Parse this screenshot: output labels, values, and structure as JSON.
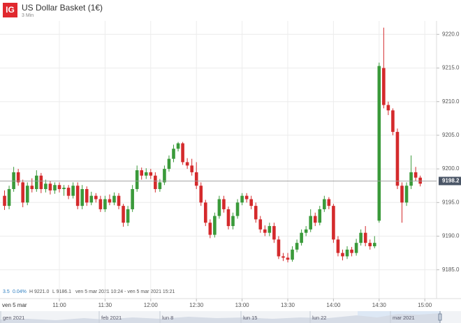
{
  "chart_data": {
    "type": "candlestick",
    "title": "US Dollar Basket (1€)",
    "subtitle": "3 Min",
    "logo": "IG",
    "date_label": "ven 5 mar",
    "x": [
      "10:24",
      "10:27",
      "10:30",
      "10:33",
      "10:36",
      "10:39",
      "10:42",
      "10:45",
      "10:48",
      "10:51",
      "10:54",
      "10:57",
      "11:00",
      "11:03",
      "11:06",
      "11:09",
      "11:12",
      "11:15",
      "11:18",
      "11:21",
      "11:24",
      "11:27",
      "11:30",
      "11:33",
      "11:36",
      "11:39",
      "11:42",
      "11:45",
      "11:48",
      "11:51",
      "11:54",
      "11:57",
      "12:00",
      "12:03",
      "12:06",
      "12:09",
      "12:12",
      "12:15",
      "12:18",
      "12:21",
      "12:24",
      "12:27",
      "12:30",
      "12:33",
      "12:36",
      "12:39",
      "12:42",
      "12:45",
      "12:48",
      "12:51",
      "12:54",
      "12:57",
      "13:00",
      "13:03",
      "13:06",
      "13:09",
      "13:12",
      "13:15",
      "13:18",
      "13:21",
      "13:24",
      "13:27",
      "13:30",
      "13:33",
      "13:36",
      "13:39",
      "13:42",
      "13:45",
      "13:48",
      "13:51",
      "13:54",
      "13:57",
      "14:00",
      "14:03",
      "14:06",
      "14:09",
      "14:12",
      "14:15",
      "14:18",
      "14:21",
      "14:24",
      "14:27",
      "14:30",
      "14:33",
      "14:36",
      "14:39",
      "14:42",
      "14:45",
      "14:48",
      "14:51",
      "14:54",
      "14:57"
    ],
    "open": [
      9196.0,
      9194.5,
      9197.0,
      9199.5,
      9198.0,
      9195.0,
      9197.5,
      9197.0,
      9199.0,
      9197.0,
      9197.8,
      9196.8,
      9197.6,
      9197.0,
      9197.2,
      9196.0,
      9197.5,
      9194.5,
      9197.0,
      9195.0,
      9196.0,
      9195.5,
      9194.0,
      9195.5,
      9195.0,
      9196.0,
      9194.5,
      9192.0,
      9194.0,
      9197.0,
      9199.8,
      9199.0,
      9199.5,
      9199.0,
      9197.0,
      9198.0,
      9200.0,
      9201.5,
      9203.0,
      9203.8,
      9201.0,
      9200.5,
      9199.5,
      9197.5,
      9195.0,
      9192.0,
      9190.2,
      9193.0,
      9195.5,
      9194.0,
      9191.5,
      9193.0,
      9195.0,
      9196.0,
      9195.5,
      9194.5,
      9192.5,
      9191.0,
      9190.5,
      9191.5,
      9189.5,
      9187.0,
      9186.8,
      9186.5,
      9188.0,
      9189.0,
      9190.5,
      9191.0,
      9193.0,
      9192.0,
      9194.0,
      9195.5,
      9194.5,
      9189.5,
      9187.5,
      9187.0,
      9188.0,
      9187.5,
      9189.0,
      9190.5,
      9189.0,
      9188.5,
      9192.3,
      9215.0,
      9209.5,
      9208.7,
      9205.5,
      9197.5,
      9195.0,
      9197.5,
      9199.5,
      9198.7
    ],
    "high": [
      9196.8,
      9197.5,
      9200.3,
      9200.0,
      9198.4,
      9198.0,
      9198.6,
      9199.8,
      9199.4,
      9198.4,
      9198.2,
      9198.0,
      9198.0,
      9197.6,
      9197.6,
      9198.0,
      9198.0,
      9197.6,
      9197.4,
      9196.6,
      9196.4,
      9196.0,
      9196.0,
      9196.2,
      9196.5,
      9196.4,
      9194.8,
      9194.5,
      9197.6,
      9200.5,
      9200.2,
      9200.1,
      9200.0,
      9199.5,
      9198.5,
      9200.5,
      9202.0,
      9203.6,
      9204.0,
      9204.0,
      9201.6,
      9201.5,
      9201.0,
      9198.0,
      9195.4,
      9192.5,
      9193.5,
      9196.0,
      9196.0,
      9194.4,
      9193.5,
      9195.5,
      9196.4,
      9196.4,
      9196.0,
      9195.0,
      9193.0,
      9191.6,
      9192.0,
      9192.0,
      9190.0,
      9187.5,
      9187.5,
      9188.5,
      9189.5,
      9191.0,
      9191.5,
      9194.0,
      9193.5,
      9194.5,
      9196.0,
      9195.8,
      9194.8,
      9190.0,
      9188.0,
      9188.5,
      9188.4,
      9189.6,
      9191.0,
      9191.5,
      9189.5,
      9190.0,
      9215.8,
      9221.0,
      9210.0,
      9209.0,
      9206.0,
      9198.0,
      9198.0,
      9202.0,
      9200.3,
      9199.0
    ],
    "low": [
      9193.9,
      9194.0,
      9196.6,
      9197.5,
      9194.3,
      9194.6,
      9196.5,
      9196.6,
      9196.4,
      9196.5,
      9196.2,
      9196.3,
      9196.5,
      9196.0,
      9195.5,
      9195.6,
      9194.0,
      9194.0,
      9194.5,
      9194.6,
      9195.0,
      9193.6,
      9193.6,
      9194.6,
      9194.6,
      9194.0,
      9191.4,
      9191.5,
      9193.6,
      9196.6,
      9198.4,
      9198.5,
      9198.5,
      9196.5,
      9196.6,
      9197.6,
      9199.6,
      9201.0,
      9202.6,
      9200.6,
      9200.0,
      9199.0,
      9197.0,
      9194.5,
      9191.5,
      9189.7,
      9189.8,
      9192.6,
      9193.5,
      9191.0,
      9191.0,
      9192.6,
      9194.6,
      9195.0,
      9194.0,
      9192.0,
      9190.5,
      9190.0,
      9190.0,
      9189.0,
      9186.6,
      9186.3,
      9186.1,
      9186.2,
      9187.6,
      9188.6,
      9190.0,
      9190.6,
      9191.5,
      9191.6,
      9193.6,
      9194.0,
      9189.0,
      9187.0,
      9186.4,
      9186.6,
      9187.0,
      9187.1,
      9188.6,
      9188.5,
      9188.0,
      9188.2,
      9192.0,
      9209.0,
      9208.0,
      9205.0,
      9197.0,
      9192.0,
      9194.5,
      9197.0,
      9198.2,
      9197.4
    ],
    "close": [
      9194.5,
      9197.0,
      9199.5,
      9198.0,
      9195.0,
      9197.5,
      9197.0,
      9199.0,
      9197.0,
      9197.8,
      9196.8,
      9197.6,
      9197.0,
      9197.2,
      9196.0,
      9197.5,
      9194.5,
      9197.0,
      9195.0,
      9196.0,
      9195.5,
      9194.0,
      9195.5,
      9195.0,
      9196.0,
      9194.5,
      9192.0,
      9194.0,
      9197.0,
      9199.8,
      9199.0,
      9199.5,
      9199.0,
      9197.0,
      9198.0,
      9200.0,
      9201.5,
      9203.0,
      9203.8,
      9201.0,
      9200.5,
      9199.5,
      9197.5,
      9195.0,
      9192.0,
      9190.2,
      9193.0,
      9195.5,
      9194.0,
      9191.5,
      9193.0,
      9195.0,
      9196.0,
      9195.5,
      9194.5,
      9192.5,
      9191.0,
      9190.5,
      9191.5,
      9189.5,
      9187.0,
      9186.8,
      9186.5,
      9188.0,
      9189.0,
      9190.5,
      9191.0,
      9193.0,
      9192.0,
      9194.0,
      9195.5,
      9194.5,
      9189.5,
      9187.5,
      9187.0,
      9188.0,
      9187.5,
      9189.0,
      9190.5,
      9189.0,
      9188.5,
      9189.0,
      9215.3,
      9209.5,
      9208.7,
      9205.5,
      9197.5,
      9195.0,
      9197.5,
      9199.5,
      9198.7,
      9197.8
    ],
    "up_color": "#3a9a3a",
    "down_color": "#d42a2c",
    "ylim": [
      9183,
      9222
    ],
    "yticks": [
      {
        "value": 9185,
        "label": "9185.0"
      },
      {
        "value": 9190,
        "label": "9190.0"
      },
      {
        "value": 9195,
        "label": "9195.0"
      },
      {
        "value": 9200,
        "label": "9200.0"
      },
      {
        "value": 9205,
        "label": "9205.0"
      },
      {
        "value": 9210,
        "label": "9210.0"
      },
      {
        "value": 9215,
        "label": "9215.0"
      },
      {
        "value": 9220,
        "label": "9220.0"
      }
    ],
    "xticks": [
      "11:00",
      "11:30",
      "12:00",
      "12:30",
      "13:00",
      "13:30",
      "14:00",
      "14:30",
      "15:00"
    ],
    "current_price": {
      "value": 9198.2,
      "label": "9198.2"
    },
    "grid": true,
    "info": {
      "change": "3.5",
      "change_pct": "0.04%",
      "high": "H 9221.0",
      "low": "L 9186.1",
      "range": "ven 5 mar 2021 10:24 - ven 5 mar 2021 15:21"
    },
    "navigator": [
      "gen 2021",
      "feb 2021",
      "lun 8",
      "lun 15",
      "lun 22",
      "mar 2021"
    ]
  }
}
